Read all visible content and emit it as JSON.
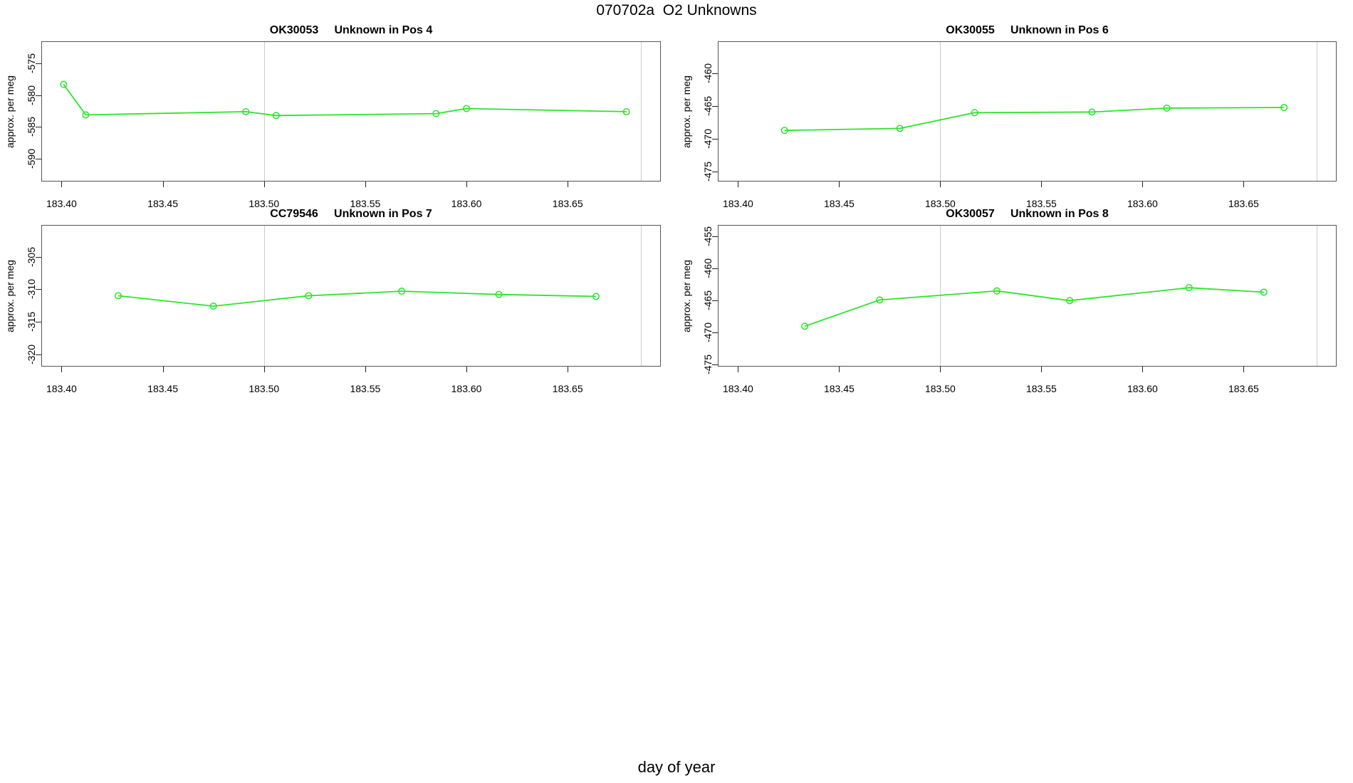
{
  "page_title": "070702a  O2 Unknowns",
  "x_axis_label": "day of year",
  "line_color": "#2ce42c",
  "grid_color": "#cccccc",
  "chart_data": [
    {
      "type": "line",
      "title": "OK30053     Unknown in Pos 4",
      "ylabel": "approx. per meg",
      "marker": "open-circle",
      "x": [
        183.401,
        183.412,
        183.491,
        183.506,
        183.585,
        183.6,
        183.679
      ],
      "y": [
        -578.3,
        -583.1,
        -582.6,
        -583.2,
        -582.9,
        -582.1,
        -582.6
      ],
      "xlim": [
        183.39,
        183.696
      ],
      "ylim": [
        -593.6,
        -571.5
      ],
      "xtick_values": [
        183.4,
        183.45,
        183.5,
        183.55,
        183.6,
        183.65
      ],
      "xtick_labels": [
        "183.40",
        "183.45",
        "183.50",
        "183.55",
        "183.60",
        "183.65"
      ],
      "ytick_values": [
        -590,
        -585,
        -580,
        -575
      ],
      "ytick_labels": [
        "-590",
        "-585",
        "-580",
        "-575"
      ],
      "grid_x": [
        183.5,
        183.686
      ]
    },
    {
      "type": "line",
      "title": "OK30055     Unknown in Pos 6",
      "ylabel": "approx. per meg",
      "marker": "open-circle",
      "x": [
        183.423,
        183.48,
        183.517,
        183.575,
        183.612,
        183.67
      ],
      "y": [
        -468.7,
        -468.4,
        -466.0,
        -465.9,
        -465.3,
        -465.2
      ],
      "xlim": [
        183.39,
        183.696
      ],
      "ylim": [
        -476.5,
        -455.1
      ],
      "xtick_values": [
        183.4,
        183.45,
        183.5,
        183.55,
        183.6,
        183.65
      ],
      "xtick_labels": [
        "183.40",
        "183.45",
        "183.50",
        "183.55",
        "183.60",
        "183.65"
      ],
      "ytick_values": [
        -475,
        -470,
        -465,
        -460
      ],
      "ytick_labels": [
        "-475",
        "-470",
        "-465",
        "-460"
      ],
      "grid_x": [
        183.5,
        183.686
      ]
    },
    {
      "type": "line",
      "title": "CC79546     Unknown in Pos 7",
      "ylabel": "approx. per meg",
      "marker": "open-circle",
      "x": [
        183.428,
        183.475,
        183.522,
        183.568,
        183.616,
        183.664
      ],
      "y": [
        -311.0,
        -312.6,
        -311.0,
        -310.3,
        -310.8,
        -311.1
      ],
      "xlim": [
        183.39,
        183.696
      ],
      "ylim": [
        -321.9,
        -300.1
      ],
      "xtick_values": [
        183.4,
        183.45,
        183.5,
        183.55,
        183.6,
        183.65
      ],
      "xtick_labels": [
        "183.40",
        "183.45",
        "183.50",
        "183.55",
        "183.60",
        "183.65"
      ],
      "ytick_values": [
        -320,
        -315,
        -310,
        -305
      ],
      "ytick_labels": [
        "-320",
        "-315",
        "-310",
        "-305"
      ],
      "grid_x": [
        183.5,
        183.686
      ]
    },
    {
      "type": "line",
      "title": "OK30057     Unknown in Pos 8",
      "ylabel": "approx. per meg",
      "marker": "open-circle",
      "x": [
        183.433,
        183.47,
        183.528,
        183.564,
        183.623,
        183.66
      ],
      "y": [
        -469.0,
        -464.9,
        -463.5,
        -465.0,
        -463.0,
        -463.7
      ],
      "xlim": [
        183.39,
        183.696
      ],
      "ylim": [
        -475.3,
        -453.2
      ],
      "xtick_values": [
        183.4,
        183.45,
        183.5,
        183.55,
        183.6,
        183.65
      ],
      "xtick_labels": [
        "183.40",
        "183.45",
        "183.50",
        "183.55",
        "183.60",
        "183.65"
      ],
      "ytick_values": [
        -475,
        -470,
        -465,
        -460,
        -455
      ],
      "ytick_labels": [
        "-475",
        "-470",
        "-465",
        "-460",
        "-455"
      ],
      "grid_x": [
        183.5,
        183.686
      ]
    }
  ]
}
